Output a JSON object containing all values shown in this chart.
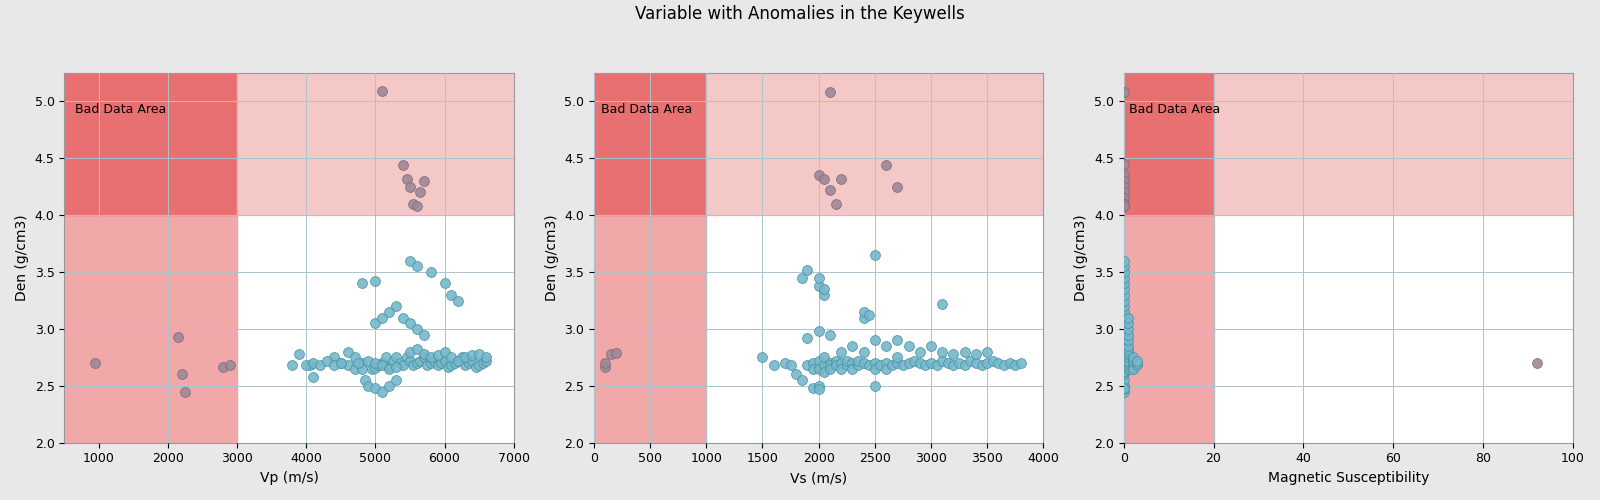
{
  "title": "Variable with Anomalies in the Keywells",
  "plots": [
    {
      "xlabel": "Vp (m/s)",
      "ylabel": "Den (g/cm3)",
      "xlim": [
        500,
        7000
      ],
      "ylim": [
        2.0,
        5.25
      ],
      "xticks": [
        1000,
        2000,
        3000,
        4000,
        5000,
        6000,
        7000
      ],
      "bad_x_thresh": 3000,
      "bad_y_thresh": 4.0,
      "normal_points": [
        [
          3800,
          2.68
        ],
        [
          3900,
          2.78
        ],
        [
          4050,
          2.68
        ],
        [
          4100,
          2.58
        ],
        [
          4400,
          2.75
        ],
        [
          4500,
          2.7
        ],
        [
          4600,
          2.68
        ],
        [
          4700,
          2.65
        ],
        [
          4800,
          2.7
        ],
        [
          4900,
          2.72
        ],
        [
          4950,
          2.65
        ],
        [
          5000,
          2.66
        ],
        [
          5050,
          2.68
        ],
        [
          5100,
          2.7
        ],
        [
          5150,
          2.75
        ],
        [
          5200,
          2.67
        ],
        [
          5250,
          2.72
        ],
        [
          5300,
          2.75
        ],
        [
          5350,
          2.7
        ],
        [
          5400,
          2.68
        ],
        [
          5450,
          2.75
        ],
        [
          5500,
          2.72
        ],
        [
          5550,
          2.68
        ],
        [
          5600,
          2.7
        ],
        [
          5650,
          2.72
        ],
        [
          5700,
          2.75
        ],
        [
          5750,
          2.68
        ],
        [
          5800,
          2.7
        ],
        [
          5850,
          2.72
        ],
        [
          5900,
          2.68
        ],
        [
          5950,
          2.7
        ],
        [
          6000,
          2.72
        ],
        [
          6050,
          2.67
        ],
        [
          6100,
          2.68
        ],
        [
          6150,
          2.7
        ],
        [
          6200,
          2.72
        ],
        [
          6250,
          2.75
        ],
        [
          6300,
          2.68
        ],
        [
          6350,
          2.7
        ],
        [
          6400,
          2.72
        ],
        [
          6450,
          2.67
        ],
        [
          6500,
          2.68
        ],
        [
          6550,
          2.7
        ],
        [
          6600,
          2.72
        ],
        [
          4800,
          2.65
        ],
        [
          4850,
          2.55
        ],
        [
          4900,
          2.5
        ],
        [
          5000,
          2.48
        ],
        [
          5100,
          2.45
        ],
        [
          5200,
          2.5
        ],
        [
          5300,
          2.55
        ],
        [
          5000,
          3.05
        ],
        [
          5100,
          3.1
        ],
        [
          5200,
          3.15
        ],
        [
          5300,
          3.2
        ],
        [
          5400,
          3.1
        ],
        [
          5500,
          3.05
        ],
        [
          5600,
          3.0
        ],
        [
          5700,
          2.95
        ],
        [
          4800,
          3.4
        ],
        [
          5000,
          3.42
        ],
        [
          5500,
          3.6
        ],
        [
          5600,
          3.55
        ],
        [
          5800,
          3.5
        ],
        [
          6000,
          3.4
        ],
        [
          6100,
          3.3
        ],
        [
          6200,
          3.25
        ],
        [
          4600,
          2.8
        ],
        [
          4700,
          2.75
        ],
        [
          4750,
          2.7
        ],
        [
          5500,
          2.8
        ],
        [
          5600,
          2.82
        ],
        [
          5700,
          2.78
        ],
        [
          5800,
          2.75
        ],
        [
          5900,
          2.77
        ],
        [
          6000,
          2.8
        ],
        [
          6100,
          2.75
        ],
        [
          6200,
          2.72
        ],
        [
          6300,
          2.75
        ],
        [
          6400,
          2.77
        ],
        [
          6500,
          2.78
        ],
        [
          6600,
          2.75
        ],
        [
          5000,
          2.7
        ],
        [
          5100,
          2.68
        ],
        [
          5200,
          2.65
        ],
        [
          5300,
          2.67
        ],
        [
          4000,
          2.68
        ],
        [
          4100,
          2.7
        ],
        [
          4200,
          2.68
        ],
        [
          4300,
          2.72
        ],
        [
          4400,
          2.68
        ],
        [
          4500,
          2.7
        ]
      ],
      "anomaly_points": [
        [
          950,
          2.7
        ],
        [
          2150,
          2.93
        ],
        [
          2200,
          2.6
        ],
        [
          2250,
          2.45
        ],
        [
          2800,
          2.67
        ],
        [
          2900,
          2.68
        ],
        [
          5100,
          5.09
        ],
        [
          5400,
          4.44
        ],
        [
          5450,
          4.32
        ],
        [
          5500,
          4.25
        ],
        [
          5550,
          4.1
        ],
        [
          5600,
          4.08
        ],
        [
          5650,
          4.2
        ],
        [
          5700,
          4.3
        ]
      ]
    },
    {
      "xlabel": "Vs (m/s)",
      "ylabel": "Den (g/cm3)",
      "xlim": [
        0,
        4000
      ],
      "ylim": [
        2.0,
        5.25
      ],
      "xticks": [
        0,
        500,
        1000,
        1500,
        2000,
        2500,
        3000,
        3500,
        4000
      ],
      "bad_x_thresh": 1000,
      "bad_y_thresh": 4.0,
      "normal_points": [
        [
          1500,
          2.75
        ],
        [
          1600,
          2.68
        ],
        [
          1700,
          2.7
        ],
        [
          1750,
          2.68
        ],
        [
          1800,
          2.6
        ],
        [
          1850,
          2.55
        ],
        [
          1850,
          3.45
        ],
        [
          1900,
          3.52
        ],
        [
          1900,
          2.68
        ],
        [
          1950,
          2.7
        ],
        [
          1950,
          2.65
        ],
        [
          1950,
          2.48
        ],
        [
          2000,
          2.72
        ],
        [
          2000,
          2.65
        ],
        [
          2000,
          2.5
        ],
        [
          2000,
          2.47
        ],
        [
          2000,
          3.38
        ],
        [
          2000,
          3.45
        ],
        [
          2050,
          2.68
        ],
        [
          2050,
          2.75
        ],
        [
          2050,
          2.62
        ],
        [
          2050,
          3.3
        ],
        [
          2050,
          3.35
        ],
        [
          2100,
          2.7
        ],
        [
          2100,
          2.68
        ],
        [
          2100,
          2.65
        ],
        [
          2150,
          2.72
        ],
        [
          2150,
          2.68
        ],
        [
          2200,
          2.7
        ],
        [
          2200,
          2.65
        ],
        [
          2250,
          2.68
        ],
        [
          2250,
          2.72
        ],
        [
          2300,
          2.7
        ],
        [
          2300,
          2.65
        ],
        [
          2350,
          2.68
        ],
        [
          2350,
          2.72
        ],
        [
          2400,
          2.7
        ],
        [
          2400,
          3.1
        ],
        [
          2400,
          3.15
        ],
        [
          2450,
          2.68
        ],
        [
          2450,
          3.12
        ],
        [
          2500,
          2.7
        ],
        [
          2500,
          2.65
        ],
        [
          2500,
          2.5
        ],
        [
          2500,
          3.65
        ],
        [
          2550,
          2.68
        ],
        [
          2600,
          2.7
        ],
        [
          2600,
          2.65
        ],
        [
          2650,
          2.68
        ],
        [
          2700,
          2.7
        ],
        [
          2700,
          2.75
        ],
        [
          2750,
          2.68
        ],
        [
          2800,
          2.7
        ],
        [
          2850,
          2.72
        ],
        [
          2900,
          2.7
        ],
        [
          2950,
          2.68
        ],
        [
          3000,
          2.7
        ],
        [
          3050,
          2.68
        ],
        [
          3100,
          2.72
        ],
        [
          3150,
          2.7
        ],
        [
          3200,
          2.68
        ],
        [
          3250,
          2.7
        ],
        [
          3300,
          2.68
        ],
        [
          3350,
          2.72
        ],
        [
          3400,
          2.7
        ],
        [
          3450,
          2.68
        ],
        [
          3500,
          2.7
        ],
        [
          3550,
          2.72
        ],
        [
          3600,
          2.7
        ],
        [
          3650,
          2.68
        ],
        [
          3700,
          2.7
        ],
        [
          3750,
          2.68
        ],
        [
          3800,
          2.7
        ],
        [
          2200,
          2.8
        ],
        [
          2300,
          2.85
        ],
        [
          2400,
          2.8
        ],
        [
          2500,
          2.9
        ],
        [
          2600,
          2.85
        ],
        [
          2700,
          2.9
        ],
        [
          2800,
          2.85
        ],
        [
          2900,
          2.8
        ],
        [
          3000,
          2.85
        ],
        [
          3100,
          2.8
        ],
        [
          3200,
          2.78
        ],
        [
          3300,
          2.8
        ],
        [
          3400,
          2.78
        ],
        [
          3500,
          2.8
        ],
        [
          1900,
          2.92
        ],
        [
          2000,
          2.98
        ],
        [
          2100,
          2.95
        ],
        [
          3100,
          3.22
        ]
      ],
      "anomaly_points": [
        [
          100,
          2.67
        ],
        [
          100,
          2.7
        ],
        [
          150,
          2.78
        ],
        [
          200,
          2.79
        ],
        [
          2100,
          5.08
        ],
        [
          2000,
          4.35
        ],
        [
          2050,
          4.32
        ],
        [
          2100,
          4.22
        ],
        [
          2150,
          4.1
        ],
        [
          2200,
          4.32
        ],
        [
          2600,
          4.44
        ],
        [
          2700,
          4.25
        ]
      ]
    },
    {
      "xlabel": "Magnetic Susceptibility",
      "ylabel": "Den (g/cm3)",
      "xlim": [
        0,
        100
      ],
      "ylim": [
        2.0,
        5.25
      ],
      "xticks": [
        0,
        20,
        40,
        60,
        80,
        100
      ],
      "bad_x_thresh": 20,
      "bad_y_thresh": 4.0,
      "normal_points": [
        [
          0,
          2.65
        ],
        [
          0,
          2.67
        ],
        [
          0,
          2.68
        ],
        [
          0,
          2.7
        ],
        [
          0,
          2.72
        ],
        [
          0,
          2.75
        ],
        [
          0,
          2.78
        ],
        [
          0,
          2.8
        ],
        [
          0,
          2.82
        ],
        [
          0,
          2.85
        ],
        [
          0,
          2.9
        ],
        [
          0,
          2.95
        ],
        [
          0,
          3.0
        ],
        [
          0,
          3.05
        ],
        [
          0,
          3.1
        ],
        [
          0,
          3.15
        ],
        [
          0,
          3.2
        ],
        [
          0,
          3.25
        ],
        [
          0,
          3.3
        ],
        [
          0,
          3.35
        ],
        [
          0,
          3.4
        ],
        [
          0,
          3.45
        ],
        [
          0,
          3.5
        ],
        [
          0,
          3.55
        ],
        [
          0,
          3.6
        ],
        [
          0,
          2.5
        ],
        [
          0,
          2.55
        ],
        [
          0,
          2.6
        ],
        [
          0,
          2.45
        ],
        [
          0,
          2.47
        ],
        [
          0,
          2.48
        ],
        [
          0,
          2.62
        ],
        [
          0,
          2.63
        ],
        [
          1,
          2.65
        ],
        [
          1,
          2.67
        ],
        [
          1,
          2.68
        ],
        [
          1,
          2.7
        ],
        [
          1,
          2.72
        ],
        [
          1,
          2.75
        ],
        [
          1,
          2.78
        ],
        [
          1,
          2.8
        ],
        [
          1,
          2.82
        ],
        [
          1,
          2.85
        ],
        [
          1,
          2.9
        ],
        [
          1,
          2.95
        ],
        [
          1,
          3.0
        ],
        [
          1,
          3.05
        ],
        [
          1,
          3.1
        ],
        [
          2,
          2.65
        ],
        [
          2,
          2.67
        ],
        [
          2,
          2.68
        ],
        [
          2,
          2.7
        ],
        [
          2,
          2.72
        ],
        [
          2,
          2.75
        ],
        [
          2,
          2.65
        ],
        [
          3,
          2.68
        ],
        [
          3,
          2.7
        ],
        [
          3,
          2.72
        ]
      ],
      "anomaly_points": [
        [
          0,
          5.08
        ],
        [
          0,
          4.45
        ],
        [
          0,
          4.35
        ],
        [
          0,
          4.3
        ],
        [
          0,
          4.25
        ],
        [
          0,
          4.2
        ],
        [
          0,
          4.15
        ],
        [
          0,
          4.1
        ],
        [
          0,
          4.08
        ],
        [
          92,
          2.7
        ]
      ]
    }
  ],
  "normal_color": "#75b8cc",
  "anomaly_color": "#9e8899",
  "bad_quad_tl": "#e87070",
  "bad_quad_bl": "#f0a8a8",
  "bad_quad_tr": "#f5c8c8",
  "bad_data_label": "Bad Data Area",
  "marker_size": 50,
  "marker_edge_color": "#4a90a0",
  "anomaly_edge_color": "#806878",
  "grid_color": "#aac4d0",
  "figure_facecolor": "#e8e8e8"
}
